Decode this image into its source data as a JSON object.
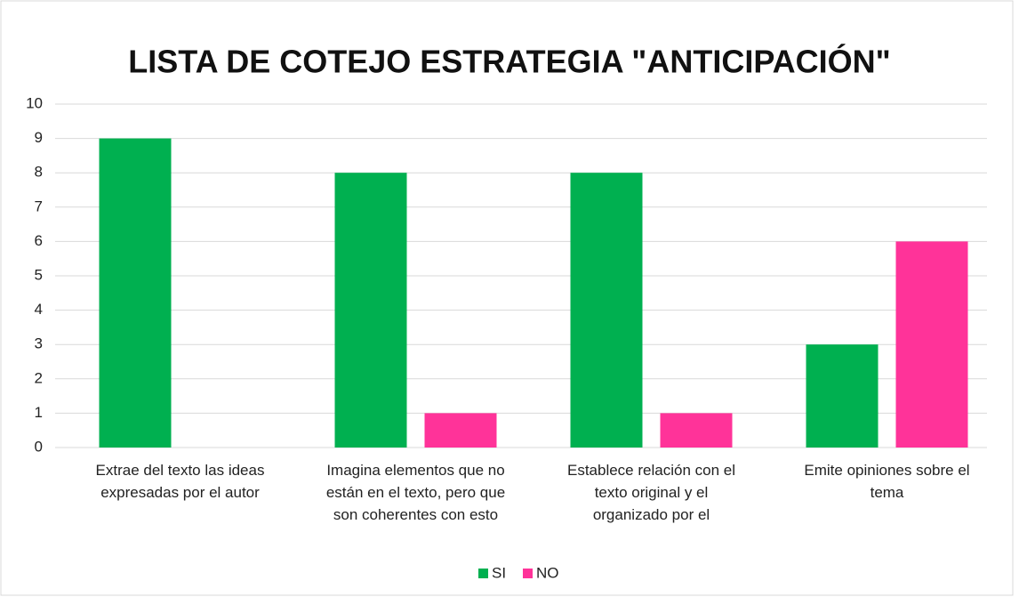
{
  "chart_data": {
    "type": "bar",
    "title": "LISTA DE COTEJO ESTRATEGIA \"ANTICIPACIÓN\"",
    "categories": [
      "Extrae del texto las ideas expresadas por el autor",
      "Imagina elementos que no están en el texto, pero que son coherentes con esto",
      "Establece relación con el texto original y el organizado por el",
      "Emite opiniones sobre el tema"
    ],
    "series": [
      {
        "name": "SI",
        "color": "#00b050",
        "values": [
          9,
          8,
          8,
          3
        ]
      },
      {
        "name": "NO",
        "color": "#ff3399",
        "values": [
          0,
          1,
          1,
          6
        ]
      }
    ],
    "ylim": [
      0,
      10
    ],
    "yticks": [
      0,
      1,
      2,
      3,
      4,
      5,
      6,
      7,
      8,
      9,
      10
    ],
    "grid": true,
    "legend": "bottom"
  }
}
